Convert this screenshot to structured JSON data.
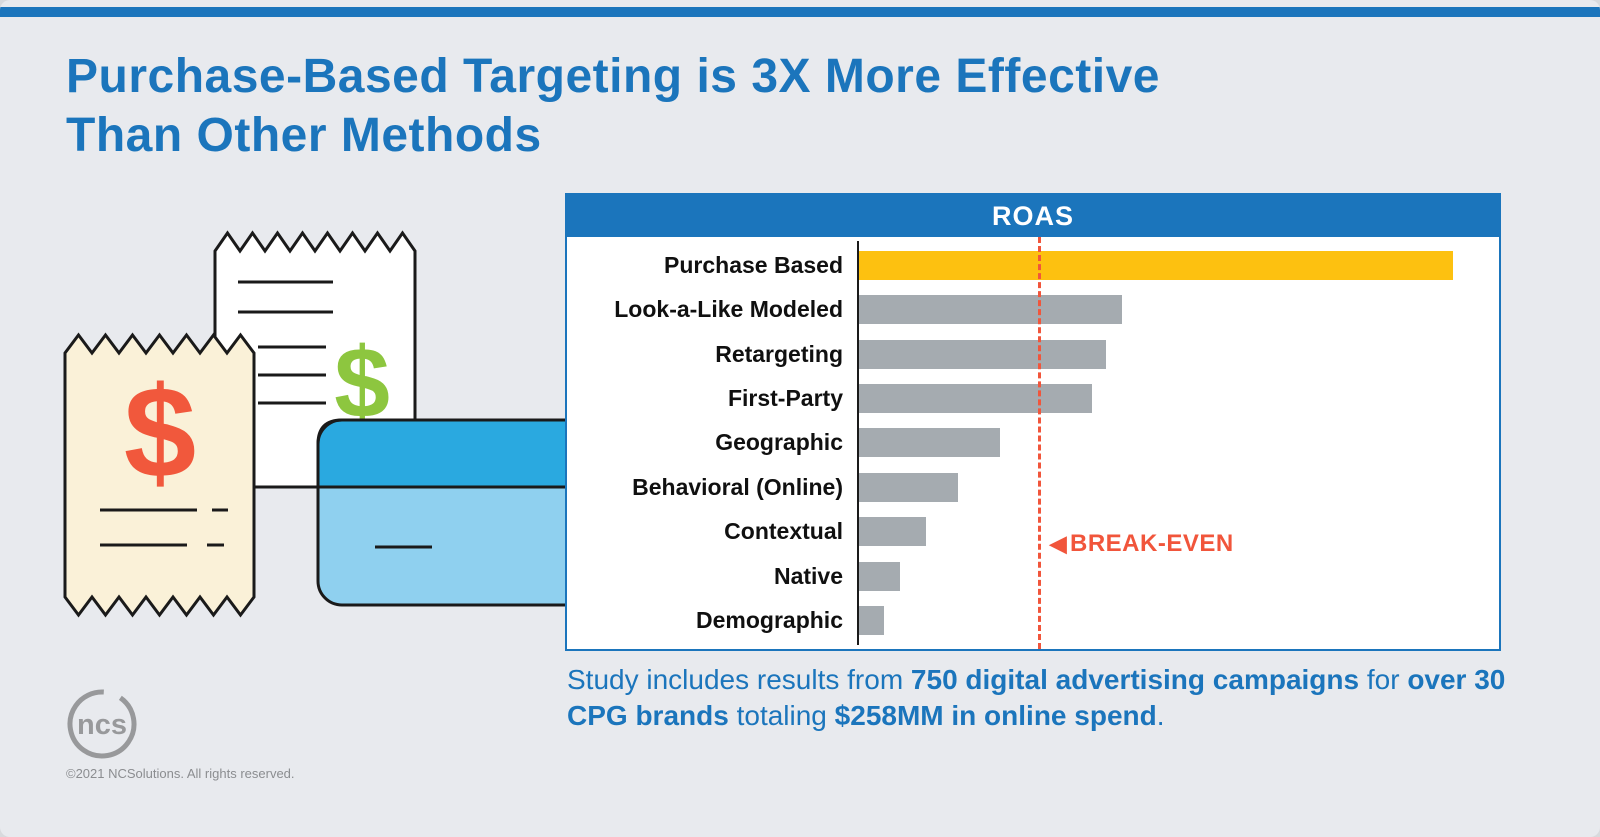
{
  "page": {
    "title": "Purchase-Based Targeting is 3X More Effective\nThan Other Methods",
    "copyright": "©2021 NCSolutions. All rights reserved.",
    "logo_text": "ncs"
  },
  "colors": {
    "background": "#E8EAEE",
    "accent_blue": "#1B75BC",
    "bar_gold": "#FDC110",
    "bar_gray": "#A5ABB0",
    "break_even_orange": "#F1553B",
    "receipt_cream": "#FAF1D8",
    "dollar_red": "#F1583C",
    "dollar_green": "#8DC63F",
    "card_light_blue": "#8FD0EF",
    "card_dark_blue": "#2AA9E0"
  },
  "chart_data": {
    "type": "bar",
    "orientation": "horizontal",
    "title": "ROAS",
    "categories": [
      "Purchase Based",
      "Look-a-Like Modeled",
      "Retargeting",
      "First-Party",
      "Geographic",
      "Behavioral (Online)",
      "Contextual",
      "Native",
      "Demographic"
    ],
    "values": [
      3.3,
      1.47,
      1.38,
      1.3,
      0.79,
      0.56,
      0.38,
      0.24,
      0.15
    ],
    "xlim": [
      0,
      3.5
    ],
    "xlabel": "",
    "ylabel": "",
    "grid": false,
    "highlight_category": "Purchase Based",
    "break_even": {
      "value": 1.0,
      "label": "BREAK-EVEN",
      "marker": "◀"
    }
  },
  "caption": {
    "segments": [
      {
        "text": "Study includes results from ",
        "bold": false
      },
      {
        "text": "750 digital advertising campaigns",
        "bold": true
      },
      {
        "text": " for ",
        "bold": false
      },
      {
        "text": "over 30 CPG brands",
        "bold": true
      },
      {
        "text": " totaling ",
        "bold": false
      },
      {
        "text": "$258MM in online spend",
        "bold": true
      },
      {
        "text": ".",
        "bold": false
      }
    ]
  },
  "illustration": {
    "description": "Two paper receipts with dollar signs and a credit card",
    "dollar_sign": "$"
  }
}
